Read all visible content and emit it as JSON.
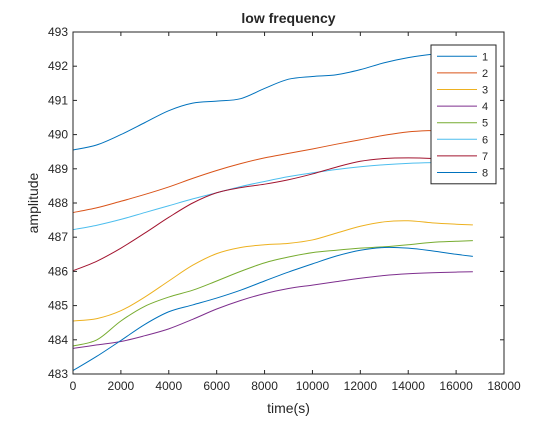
{
  "chart_data": {
    "type": "line",
    "title": "low frequency",
    "xlabel": "time(s)",
    "ylabel": "amplitude",
    "xlim": [
      0,
      18000
    ],
    "ylim": [
      483,
      493
    ],
    "x_ticks": [
      0,
      2000,
      4000,
      6000,
      8000,
      10000,
      12000,
      14000,
      16000,
      18000
    ],
    "y_ticks": [
      483,
      484,
      485,
      486,
      487,
      488,
      489,
      490,
      491,
      492,
      493
    ],
    "grid": false,
    "legend_position": "top-right",
    "x": [
      0,
      1000,
      2000,
      3000,
      4000,
      5000,
      6000,
      7000,
      8000,
      9000,
      10000,
      11000,
      12000,
      13000,
      14000,
      15000,
      16000,
      16700
    ],
    "series": [
      {
        "name": "1",
        "color": "#0072BD",
        "values": [
          489.55,
          489.7,
          490.0,
          490.35,
          490.7,
          490.92,
          490.98,
          491.05,
          491.35,
          491.62,
          491.7,
          491.75,
          491.9,
          492.1,
          492.25,
          492.35,
          492.38,
          492.38
        ]
      },
      {
        "name": "2",
        "color": "#D95319",
        "values": [
          487.72,
          487.86,
          488.05,
          488.25,
          488.47,
          488.72,
          488.95,
          489.15,
          489.32,
          489.45,
          489.58,
          489.72,
          489.85,
          489.98,
          490.08,
          490.12,
          490.14,
          490.13
        ]
      },
      {
        "name": "3",
        "color": "#EDB120",
        "values": [
          484.55,
          484.62,
          484.85,
          485.25,
          485.72,
          486.18,
          486.52,
          486.7,
          486.78,
          486.82,
          486.92,
          487.12,
          487.32,
          487.45,
          487.48,
          487.42,
          487.38,
          487.36
        ]
      },
      {
        "name": "4",
        "color": "#7E2F8E",
        "values": [
          483.75,
          483.85,
          483.95,
          484.12,
          484.32,
          484.6,
          484.9,
          485.15,
          485.35,
          485.5,
          485.6,
          485.7,
          485.8,
          485.88,
          485.93,
          485.96,
          485.98,
          485.99
        ]
      },
      {
        "name": "5",
        "color": "#77AC30",
        "values": [
          483.82,
          484.0,
          484.55,
          484.98,
          485.25,
          485.45,
          485.72,
          486.0,
          486.25,
          486.42,
          486.55,
          486.62,
          486.68,
          486.72,
          486.78,
          486.85,
          486.88,
          486.9
        ]
      },
      {
        "name": "6",
        "color": "#4DBEEE",
        "values": [
          487.22,
          487.35,
          487.52,
          487.72,
          487.92,
          488.12,
          488.3,
          488.48,
          488.63,
          488.77,
          488.88,
          488.98,
          489.06,
          489.12,
          489.16,
          489.18,
          489.19,
          489.19
        ]
      },
      {
        "name": "7",
        "color": "#A2142F",
        "values": [
          486.02,
          486.3,
          486.68,
          487.12,
          487.58,
          488.0,
          488.3,
          488.45,
          488.55,
          488.68,
          488.85,
          489.05,
          489.22,
          489.3,
          489.32,
          489.3,
          489.25,
          489.22
        ]
      },
      {
        "name": "8",
        "color": "#0072BD",
        "values": [
          483.1,
          483.52,
          483.98,
          484.45,
          484.82,
          485.02,
          485.22,
          485.45,
          485.72,
          485.98,
          486.22,
          486.45,
          486.62,
          486.7,
          486.68,
          486.6,
          486.5,
          486.44
        ]
      }
    ]
  }
}
